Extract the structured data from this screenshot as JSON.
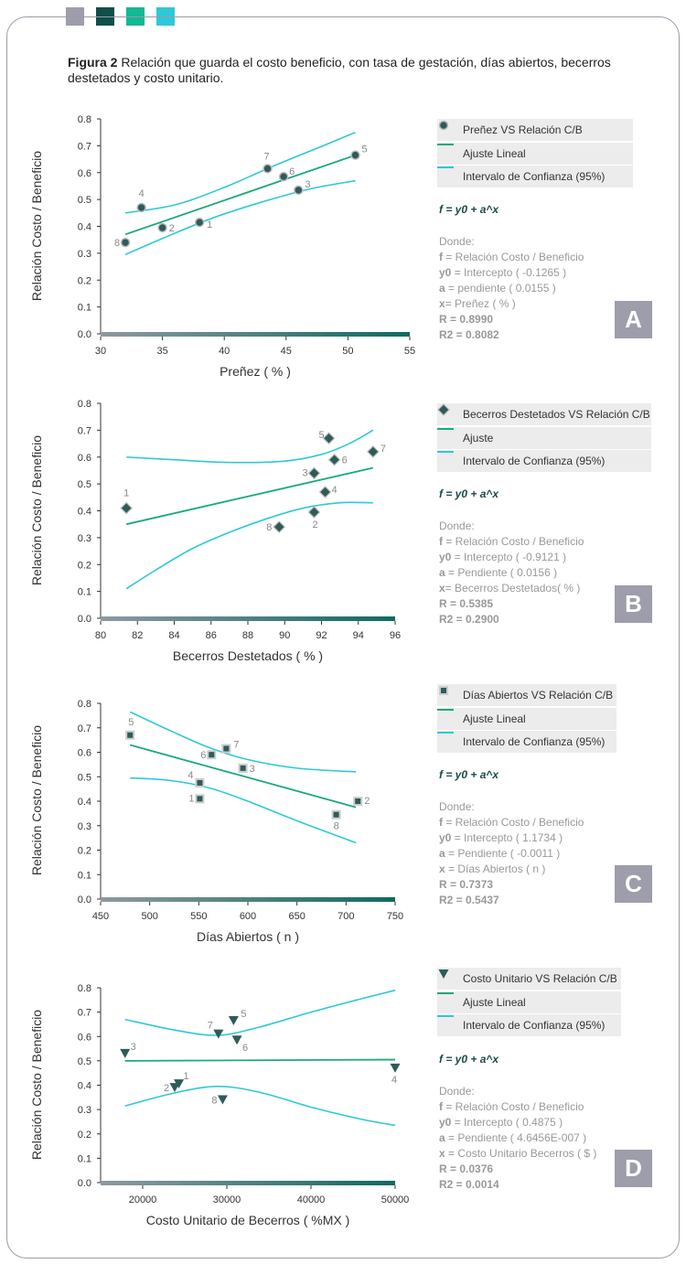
{
  "header_squares": [
    "#9d9dab",
    "#0f4f4a",
    "#13b894",
    "#2ec8d8"
  ],
  "caption": {
    "label": "Figura 2",
    "text": " Relación que guarda el costo beneficio, con tasa de gestación, días abiertos, becerros destetados y costo unitario."
  },
  "colors": {
    "fit": "#1aaa7a",
    "ci": "#2ec8d8",
    "marker": "#2e5b5a",
    "axis_bar": "#2d7a72",
    "label_gray": "#888888"
  },
  "chart_data": [
    {
      "id": "A",
      "type": "scatter",
      "xlabel": "Preñez ( % )",
      "ylabel": "Relación Costo / Beneficio",
      "xlim": [
        30,
        55
      ],
      "ylim": [
        0,
        0.8
      ],
      "xticks": [
        30,
        35,
        40,
        45,
        50,
        55
      ],
      "yticks": [
        "0.0",
        "0.1",
        "0.2",
        "0.3",
        "0.4",
        "0.5",
        "0.6",
        "0.7",
        "0.8"
      ],
      "marker": "circle",
      "points": [
        {
          "label": "1",
          "x": 38.0,
          "y": 0.415
        },
        {
          "label": "2",
          "x": 35.0,
          "y": 0.395
        },
        {
          "label": "3",
          "x": 46.0,
          "y": 0.535
        },
        {
          "label": "4",
          "x": 33.3,
          "y": 0.47
        },
        {
          "label": "5",
          "x": 50.6,
          "y": 0.665
        },
        {
          "label": "6",
          "x": 44.8,
          "y": 0.585
        },
        {
          "label": "7",
          "x": 43.5,
          "y": 0.615
        },
        {
          "label": "8",
          "x": 32.0,
          "y": 0.34
        }
      ],
      "fit": [
        [
          32,
          0.37
        ],
        [
          50.6,
          0.665
        ]
      ],
      "ci_upper": [
        [
          32,
          0.45
        ],
        [
          36,
          0.48
        ],
        [
          40,
          0.545
        ],
        [
          44,
          0.625
        ],
        [
          48,
          0.7
        ],
        [
          50.6,
          0.75
        ]
      ],
      "ci_lower": [
        [
          32,
          0.295
        ],
        [
          35,
          0.355
        ],
        [
          39,
          0.43
        ],
        [
          43,
          0.49
        ],
        [
          47,
          0.54
        ],
        [
          50.6,
          0.57
        ]
      ],
      "legend": [
        "Preñez VS Relación C/B",
        "Ajuste Lineal",
        "Intervalo de Confianza (95%)"
      ],
      "formula": "f = y0 + a^x",
      "donde": "Donde:",
      "defs": [
        {
          "k": "f",
          "v": " = Relación Costo / Beneficio"
        },
        {
          "k": "y0",
          "v": " = Intercepto ( -0.1265 )"
        },
        {
          "k": "a",
          "v": " = pendiente ( 0.0155 )"
        },
        {
          "k": "x",
          "v": "= Preñez ( % )"
        }
      ],
      "r": "R = 0.8990",
      "r2": "R2 = 0.8082",
      "letter": "A"
    },
    {
      "id": "B",
      "type": "scatter",
      "xlabel": "Becerros Destetados ( % )",
      "ylabel": "Relación Costo / Beneficio",
      "xlim": [
        80,
        96
      ],
      "ylim": [
        0,
        0.8
      ],
      "xticks": [
        80,
        82,
        84,
        86,
        88,
        90,
        92,
        94,
        96
      ],
      "yticks": [
        "0.0",
        "0.1",
        "0.2",
        "0.3",
        "0.4",
        "0.5",
        "0.6",
        "0.7",
        "0.8"
      ],
      "marker": "diamond",
      "points": [
        {
          "label": "1",
          "x": 81.4,
          "y": 0.41
        },
        {
          "label": "2",
          "x": 91.6,
          "y": 0.395
        },
        {
          "label": "3",
          "x": 91.6,
          "y": 0.54
        },
        {
          "label": "4",
          "x": 92.2,
          "y": 0.47
        },
        {
          "label": "5",
          "x": 92.4,
          "y": 0.67
        },
        {
          "label": "6",
          "x": 92.7,
          "y": 0.59
        },
        {
          "label": "7",
          "x": 94.8,
          "y": 0.62
        },
        {
          "label": "8",
          "x": 89.7,
          "y": 0.34
        }
      ],
      "fit": [
        [
          81.4,
          0.35
        ],
        [
          94.8,
          0.56
        ]
      ],
      "ci_upper": [
        [
          81.4,
          0.6
        ],
        [
          84,
          0.59
        ],
        [
          87,
          0.58
        ],
        [
          90,
          0.585
        ],
        [
          92,
          0.61
        ],
        [
          93.5,
          0.65
        ],
        [
          94.8,
          0.7
        ]
      ],
      "ci_lower": [
        [
          81.4,
          0.11
        ],
        [
          83,
          0.18
        ],
        [
          85,
          0.26
        ],
        [
          87,
          0.32
        ],
        [
          89,
          0.37
        ],
        [
          91,
          0.41
        ],
        [
          93,
          0.43
        ],
        [
          94.8,
          0.43
        ]
      ],
      "legend": [
        "Becerros Destetados VS Relación C/B",
        "Ajuste",
        "Intervalo de Confianza (95%)"
      ],
      "formula": "f = y0 + a^x",
      "donde": "Donde:",
      "defs": [
        {
          "k": "f",
          "v": " = Relación Costo / Beneficio"
        },
        {
          "k": "y0",
          "v": " = Intercepto ( -0.9121 )"
        },
        {
          "k": "a",
          "v": " = Pendiente ( 0.0156 )"
        },
        {
          "k": "x",
          "v": "= Becerros Destetados( % )"
        }
      ],
      "r": "R = 0.5385",
      "r2": "R2 = 0.2900",
      "letter": "B"
    },
    {
      "id": "C",
      "type": "scatter",
      "xlabel": "Días Abiertos ( n )",
      "ylabel": "Relación Costo / Beneficio",
      "xlim": [
        450,
        750
      ],
      "ylim": [
        0,
        0.8
      ],
      "xticks": [
        450,
        500,
        550,
        600,
        650,
        700,
        750
      ],
      "yticks": [
        "0.0",
        "0.1",
        "0.2",
        "0.3",
        "0.4",
        "0.5",
        "0.6",
        "0.7",
        "0.8"
      ],
      "marker": "square",
      "points": [
        {
          "label": "1",
          "x": 551,
          "y": 0.41
        },
        {
          "label": "2",
          "x": 712,
          "y": 0.4
        },
        {
          "label": "3",
          "x": 595,
          "y": 0.535
        },
        {
          "label": "4",
          "x": 551,
          "y": 0.475
        },
        {
          "label": "5",
          "x": 480,
          "y": 0.67
        },
        {
          "label": "6",
          "x": 563,
          "y": 0.59
        },
        {
          "label": "7",
          "x": 578,
          "y": 0.615
        },
        {
          "label": "8",
          "x": 690,
          "y": 0.345
        }
      ],
      "fit": [
        [
          480,
          0.63
        ],
        [
          710,
          0.375
        ]
      ],
      "ci_upper": [
        [
          480,
          0.765
        ],
        [
          520,
          0.69
        ],
        [
          560,
          0.62
        ],
        [
          600,
          0.57
        ],
        [
          650,
          0.535
        ],
        [
          710,
          0.52
        ]
      ],
      "ci_lower": [
        [
          480,
          0.495
        ],
        [
          520,
          0.485
        ],
        [
          560,
          0.455
        ],
        [
          600,
          0.4
        ],
        [
          650,
          0.32
        ],
        [
          710,
          0.23
        ]
      ],
      "legend": [
        "Días Abiertos VS Relación C/B",
        "Ajuste Lineal",
        "Intervalo de Confianza (95%)"
      ],
      "formula": "f = y0 + a^x",
      "donde": "Donde:",
      "defs": [
        {
          "k": "f",
          "v": " = Relación Costo / Beneficio"
        },
        {
          "k": "y0",
          "v": " = Intercepto ( 1.1734 )"
        },
        {
          "k": "a",
          "v": " = Pendiente ( -0.0011 )"
        },
        {
          "k": "x",
          "v": " = Días Abiertos ( n )"
        }
      ],
      "r": "R = 0.7373",
      "r2": "R2 = 0.5437",
      "letter": "C"
    },
    {
      "id": "D",
      "type": "scatter",
      "xlabel": "Costo Unitario de Becerros ( %MX )",
      "ylabel": "Relación Costo / Beneficio",
      "xlim": [
        15000,
        50000
      ],
      "ylim": [
        0,
        0.8
      ],
      "xticks": [
        20000,
        30000,
        40000,
        50000
      ],
      "yticks": [
        "0.0",
        "0.1",
        "0.2",
        "0.3",
        "0.4",
        "0.5",
        "0.6",
        "0.7",
        "0.8"
      ],
      "marker": "triangle",
      "points": [
        {
          "label": "1",
          "x": 24300,
          "y": 0.405
        },
        {
          "label": "2",
          "x": 23800,
          "y": 0.39
        },
        {
          "label": "3",
          "x": 17900,
          "y": 0.53
        },
        {
          "label": "4",
          "x": 50000,
          "y": 0.47
        },
        {
          "label": "5",
          "x": 30800,
          "y": 0.665
        },
        {
          "label": "6",
          "x": 31200,
          "y": 0.585
        },
        {
          "label": "7",
          "x": 29000,
          "y": 0.61
        },
        {
          "label": "8",
          "x": 29500,
          "y": 0.34
        }
      ],
      "fit": [
        [
          17900,
          0.5
        ],
        [
          50000,
          0.505
        ]
      ],
      "ci_upper": [
        [
          17900,
          0.67
        ],
        [
          24000,
          0.625
        ],
        [
          29000,
          0.605
        ],
        [
          34000,
          0.64
        ],
        [
          40000,
          0.7
        ],
        [
          46000,
          0.755
        ],
        [
          50000,
          0.79
        ]
      ],
      "ci_lower": [
        [
          17900,
          0.315
        ],
        [
          24000,
          0.37
        ],
        [
          29000,
          0.395
        ],
        [
          34000,
          0.37
        ],
        [
          40000,
          0.31
        ],
        [
          46000,
          0.26
        ],
        [
          50000,
          0.235
        ]
      ],
      "legend": [
        "Costo Unitario VS Relación C/B",
        "Ajuste Lineal",
        "Intervalo de Confianza (95%)"
      ],
      "formula": "f = y0 + a^x",
      "donde": "Donde:",
      "defs": [
        {
          "k": "f",
          "v": " = Relación Costo / Beneficio"
        },
        {
          "k": "y0",
          "v": " = Intercepto ( 0.4875 )"
        },
        {
          "k": "a",
          "v": " = Pendiente ( 4.6456E-007 )"
        },
        {
          "k": "x",
          "v": " = Costo Unitario Becerros ( $ )"
        }
      ],
      "r": "R = 0.0376",
      "r2": "R2 = 0.0014",
      "letter": "D"
    }
  ]
}
